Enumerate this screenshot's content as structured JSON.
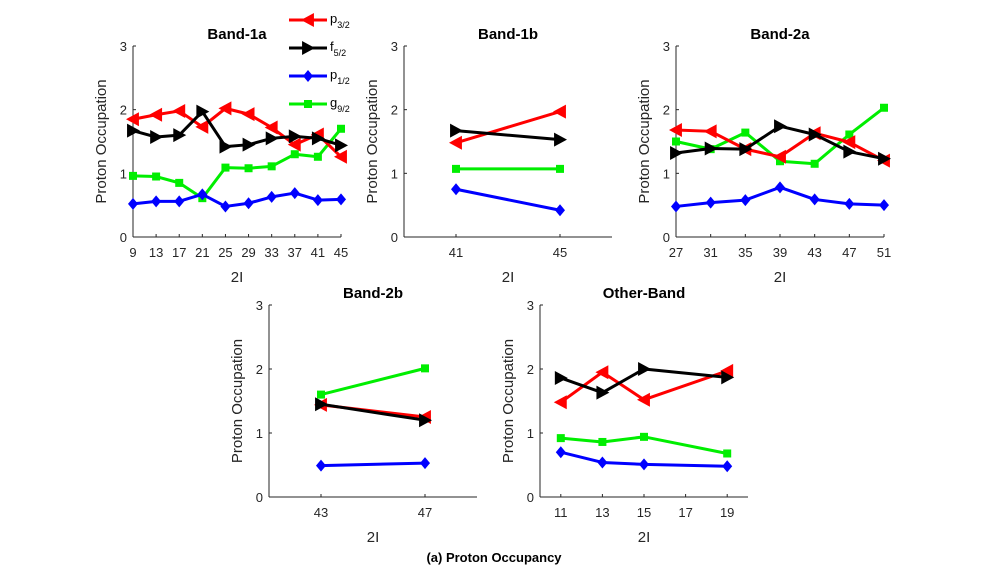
{
  "caption": "(a) Proton Occupancy",
  "legend": [
    {
      "base": "p",
      "sub": "3/2",
      "color": "#ff0000",
      "marker": "triangle-left"
    },
    {
      "base": "f",
      "sub": "5/2",
      "color": "#000000",
      "marker": "triangle-right"
    },
    {
      "base": "p",
      "sub": "1/2",
      "color": "#0000ff",
      "marker": "diamond"
    },
    {
      "base": "g",
      "sub": "9/2",
      "color": "#00ee00",
      "marker": "square"
    }
  ],
  "chart_data": [
    {
      "type": "line",
      "title": "Band-1a",
      "xlabel": "2I",
      "ylabel": "Proton Occupation",
      "xlim": [
        9,
        45
      ],
      "ylim": [
        0,
        3
      ],
      "xticks": [
        9,
        13,
        17,
        21,
        25,
        29,
        33,
        37,
        41,
        45
      ],
      "yticks": [
        0,
        1,
        2,
        3
      ],
      "x": [
        9,
        13,
        17,
        21,
        25,
        29,
        33,
        37,
        41,
        45
      ],
      "series": [
        {
          "name": "p3/2",
          "values": [
            1.85,
            1.92,
            1.98,
            1.73,
            2.02,
            1.93,
            1.72,
            1.45,
            1.61,
            1.26
          ]
        },
        {
          "name": "f5/2",
          "values": [
            1.67,
            1.57,
            1.6,
            1.97,
            1.42,
            1.45,
            1.55,
            1.58,
            1.55,
            1.44
          ]
        },
        {
          "name": "p1/2",
          "values": [
            0.52,
            0.56,
            0.56,
            0.67,
            0.48,
            0.53,
            0.63,
            0.69,
            0.58,
            0.59
          ]
        },
        {
          "name": "g9/2",
          "values": [
            0.96,
            0.95,
            0.85,
            0.61,
            1.09,
            1.08,
            1.11,
            1.3,
            1.26,
            1.7
          ]
        }
      ]
    },
    {
      "type": "line",
      "title": "Band-1b",
      "xlabel": "2I",
      "ylabel": "Proton Occupation",
      "xlim": [
        39,
        47
      ],
      "ylim": [
        0,
        3
      ],
      "xticks": [
        41,
        45
      ],
      "yticks": [
        0,
        1,
        2,
        3
      ],
      "x": [
        41,
        45
      ],
      "series": [
        {
          "name": "p3/2",
          "values": [
            1.48,
            1.97
          ]
        },
        {
          "name": "f5/2",
          "values": [
            1.67,
            1.53
          ]
        },
        {
          "name": "p1/2",
          "values": [
            0.75,
            0.42
          ]
        },
        {
          "name": "g9/2",
          "values": [
            1.07,
            1.07
          ]
        }
      ]
    },
    {
      "type": "line",
      "title": "Band-2a",
      "xlabel": "2I",
      "ylabel": "Proton Occupation",
      "xlim": [
        27,
        51
      ],
      "ylim": [
        0,
        3
      ],
      "xticks": [
        27,
        31,
        35,
        39,
        43,
        47,
        51
      ],
      "yticks": [
        0,
        1,
        2,
        3
      ],
      "x": [
        27,
        31,
        35,
        39,
        43,
        47,
        51
      ],
      "series": [
        {
          "name": "p3/2",
          "values": [
            1.68,
            1.66,
            1.38,
            1.26,
            1.63,
            1.49,
            1.2
          ]
        },
        {
          "name": "f5/2",
          "values": [
            1.32,
            1.39,
            1.38,
            1.74,
            1.61,
            1.34,
            1.23
          ]
        },
        {
          "name": "p1/2",
          "values": [
            0.48,
            0.54,
            0.58,
            0.78,
            0.59,
            0.52,
            0.5
          ]
        },
        {
          "name": "g9/2",
          "values": [
            1.5,
            1.38,
            1.64,
            1.19,
            1.15,
            1.61,
            2.03
          ]
        }
      ]
    },
    {
      "type": "line",
      "title": "Band-2b",
      "xlabel": "2I",
      "ylabel": "Proton Occupation",
      "xlim": [
        41,
        49
      ],
      "ylim": [
        0,
        3
      ],
      "xticks": [
        43,
        47
      ],
      "yticks": [
        0,
        1,
        2,
        3
      ],
      "x": [
        43,
        47
      ],
      "series": [
        {
          "name": "p3/2",
          "values": [
            1.44,
            1.25
          ]
        },
        {
          "name": "f5/2",
          "values": [
            1.45,
            1.2
          ]
        },
        {
          "name": "p1/2",
          "values": [
            0.49,
            0.53
          ]
        },
        {
          "name": "g9/2",
          "values": [
            1.6,
            2.01
          ]
        }
      ]
    },
    {
      "type": "line",
      "title": "Other-Band",
      "xlabel": "2I",
      "ylabel": "Proton Occupation",
      "xlim": [
        10,
        20
      ],
      "ylim": [
        0,
        3
      ],
      "xticks": [
        11,
        13,
        15,
        17,
        19
      ],
      "yticks": [
        0,
        1,
        2,
        3
      ],
      "x": [
        11,
        13,
        15,
        19
      ],
      "series": [
        {
          "name": "p3/2",
          "values": [
            1.48,
            1.95,
            1.52,
            1.97
          ]
        },
        {
          "name": "f5/2",
          "values": [
            1.86,
            1.63,
            2.0,
            1.87
          ]
        },
        {
          "name": "p1/2",
          "values": [
            0.7,
            0.54,
            0.51,
            0.48
          ]
        },
        {
          "name": "g9/2",
          "values": [
            0.92,
            0.86,
            0.94,
            0.68
          ]
        }
      ]
    }
  ]
}
